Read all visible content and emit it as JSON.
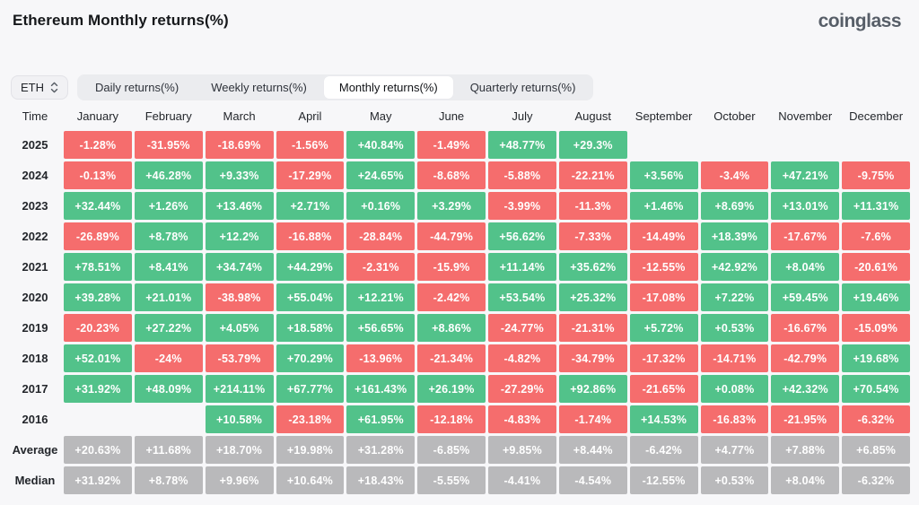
{
  "header": {
    "title": "Ethereum Monthly returns(%)",
    "brand": "coinglass"
  },
  "controls": {
    "symbol": "ETH",
    "tabs": [
      {
        "label": "Daily returns(%)",
        "active": false
      },
      {
        "label": "Weekly returns(%)",
        "active": false
      },
      {
        "label": "Monthly returns(%)",
        "active": true
      },
      {
        "label": "Quarterly returns(%)",
        "active": false
      }
    ]
  },
  "chart_data": {
    "type": "heatmap",
    "columns": [
      "Time",
      "January",
      "February",
      "March",
      "April",
      "May",
      "June",
      "July",
      "August",
      "September",
      "October",
      "November",
      "December"
    ],
    "rows": [
      {
        "label": "2025",
        "neutral": false,
        "values": [
          "-1.28%",
          "-31.95%",
          "-18.69%",
          "-1.56%",
          "+40.84%",
          "-1.49%",
          "+48.77%",
          "+29.3%",
          "",
          "",
          "",
          ""
        ]
      },
      {
        "label": "2024",
        "neutral": false,
        "values": [
          "-0.13%",
          "+46.28%",
          "+9.33%",
          "-17.29%",
          "+24.65%",
          "-8.68%",
          "-5.88%",
          "-22.21%",
          "+3.56%",
          "-3.4%",
          "+47.21%",
          "-9.75%"
        ]
      },
      {
        "label": "2023",
        "neutral": false,
        "values": [
          "+32.44%",
          "+1.26%",
          "+13.46%",
          "+2.71%",
          "+0.16%",
          "+3.29%",
          "-3.99%",
          "-11.3%",
          "+1.46%",
          "+8.69%",
          "+13.01%",
          "+11.31%"
        ]
      },
      {
        "label": "2022",
        "neutral": false,
        "values": [
          "-26.89%",
          "+8.78%",
          "+12.2%",
          "-16.88%",
          "-28.84%",
          "-44.79%",
          "+56.62%",
          "-7.33%",
          "-14.49%",
          "+18.39%",
          "-17.67%",
          "-7.6%"
        ]
      },
      {
        "label": "2021",
        "neutral": false,
        "values": [
          "+78.51%",
          "+8.41%",
          "+34.74%",
          "+44.29%",
          "-2.31%",
          "-15.9%",
          "+11.14%",
          "+35.62%",
          "-12.55%",
          "+42.92%",
          "+8.04%",
          "-20.61%"
        ]
      },
      {
        "label": "2020",
        "neutral": false,
        "values": [
          "+39.28%",
          "+21.01%",
          "-38.98%",
          "+55.04%",
          "+12.21%",
          "-2.42%",
          "+53.54%",
          "+25.32%",
          "-17.08%",
          "+7.22%",
          "+59.45%",
          "+19.46%"
        ]
      },
      {
        "label": "2019",
        "neutral": false,
        "values": [
          "-20.23%",
          "+27.22%",
          "+4.05%",
          "+18.58%",
          "+56.65%",
          "+8.86%",
          "-24.77%",
          "-21.31%",
          "+5.72%",
          "+0.53%",
          "-16.67%",
          "-15.09%"
        ]
      },
      {
        "label": "2018",
        "neutral": false,
        "values": [
          "+52.01%",
          "-24%",
          "-53.79%",
          "+70.29%",
          "-13.96%",
          "-21.34%",
          "-4.82%",
          "-34.79%",
          "-17.32%",
          "-14.71%",
          "-42.79%",
          "+19.68%"
        ]
      },
      {
        "label": "2017",
        "neutral": false,
        "values": [
          "+31.92%",
          "+48.09%",
          "+214.11%",
          "+67.77%",
          "+161.43%",
          "+26.19%",
          "-27.29%",
          "+92.86%",
          "-21.65%",
          "+0.08%",
          "+42.32%",
          "+70.54%"
        ]
      },
      {
        "label": "2016",
        "neutral": false,
        "values": [
          "",
          "",
          "+10.58%",
          "-23.18%",
          "+61.95%",
          "-12.18%",
          "-4.83%",
          "-1.74%",
          "+14.53%",
          "-16.83%",
          "-21.95%",
          "-6.32%"
        ]
      },
      {
        "label": "Average",
        "neutral": true,
        "values": [
          "+20.63%",
          "+11.68%",
          "+18.70%",
          "+19.98%",
          "+31.28%",
          "-6.85%",
          "+9.85%",
          "+8.44%",
          "-6.42%",
          "+4.77%",
          "+7.88%",
          "+6.85%"
        ]
      },
      {
        "label": "Median",
        "neutral": true,
        "values": [
          "+31.92%",
          "+8.78%",
          "+9.96%",
          "+10.64%",
          "+18.43%",
          "-5.55%",
          "-4.41%",
          "-4.54%",
          "-12.55%",
          "+0.53%",
          "+8.04%",
          "-6.32%"
        ]
      }
    ]
  },
  "colors": {
    "positive": "#52c28a",
    "negative": "#f56d6d",
    "neutral": "#b9b9bb"
  }
}
